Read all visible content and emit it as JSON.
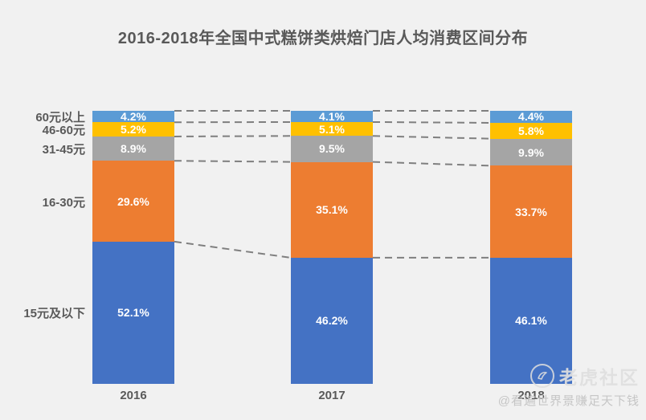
{
  "title": "2016-2018年全国中式糕饼类烘焙门店人均消费区间分布",
  "chart_data": {
    "type": "bar",
    "subtype": "stacked-percent",
    "title": "2016-2018年全国中式糕饼类烘焙门店人均消费区间分布",
    "categories": [
      "2016",
      "2017",
      "2018"
    ],
    "series": [
      {
        "name": "15元及以下",
        "color": "#4472C4",
        "values": [
          52.1,
          46.2,
          46.1
        ]
      },
      {
        "name": "16-30元",
        "color": "#ED7D31",
        "values": [
          29.6,
          35.1,
          33.7
        ]
      },
      {
        "name": "31-45元",
        "color": "#A5A5A5",
        "values": [
          8.9,
          9.5,
          9.9
        ]
      },
      {
        "name": "46-60元",
        "color": "#FFC000",
        "values": [
          5.2,
          5.1,
          5.8
        ]
      },
      {
        "name": "60元以上",
        "color": "#5B9BD5",
        "values": [
          4.2,
          4.1,
          4.4
        ]
      }
    ],
    "value_suffix": "%",
    "ylim": [
      0,
      100
    ],
    "grid": false,
    "legend_position": "left-category-labels",
    "connector_lines": "dashed",
    "connector_color": "#7f7f7f",
    "value_label_color": "#ffffff",
    "axis_label_color": "#595959",
    "background_color": "#f1f1f1"
  },
  "watermark": {
    "icon": "tiger-logo-icon",
    "brand": "老虎社区",
    "tagline": "@看遍世界景赚足天下钱"
  }
}
